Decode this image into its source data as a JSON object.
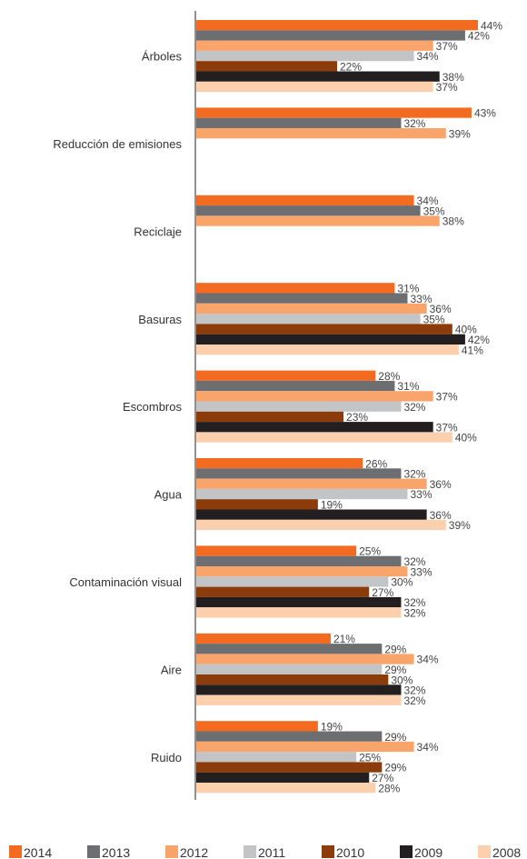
{
  "chart_data": {
    "type": "bar",
    "orientation": "horizontal",
    "categories": [
      "Árboles",
      "Reducción de emisiones",
      "Reciclaje",
      "Basuras",
      "Escombros",
      "Agua",
      "Contaminación visual",
      "Aire",
      "Ruido"
    ],
    "value_suffix": "%",
    "xlim": [
      0,
      44
    ],
    "grid": false,
    "legend_position": "bottom",
    "series": [
      {
        "name": "2014",
        "color": "#f26b21",
        "values": [
          44,
          43,
          34,
          31,
          28,
          26,
          25,
          21,
          19
        ]
      },
      {
        "name": "2013",
        "color": "#6d6e71",
        "values": [
          42,
          32,
          35,
          33,
          31,
          32,
          32,
          29,
          29
        ]
      },
      {
        "name": "2012",
        "color": "#f9a46b",
        "values": [
          37,
          39,
          38,
          36,
          37,
          36,
          33,
          34,
          34
        ]
      },
      {
        "name": "2011",
        "color": "#c3c4c6",
        "values": [
          34,
          null,
          null,
          35,
          32,
          33,
          30,
          29,
          25
        ]
      },
      {
        "name": "2010",
        "color": "#8c3c0a",
        "values": [
          22,
          null,
          null,
          40,
          23,
          19,
          27,
          30,
          29
        ]
      },
      {
        "name": "2009",
        "color": "#231f20",
        "values": [
          38,
          null,
          null,
          42,
          37,
          36,
          32,
          32,
          27
        ]
      },
      {
        "name": "2008",
        "color": "#fcd0ad",
        "values": [
          37,
          null,
          null,
          41,
          40,
          39,
          32,
          32,
          28
        ]
      }
    ]
  }
}
